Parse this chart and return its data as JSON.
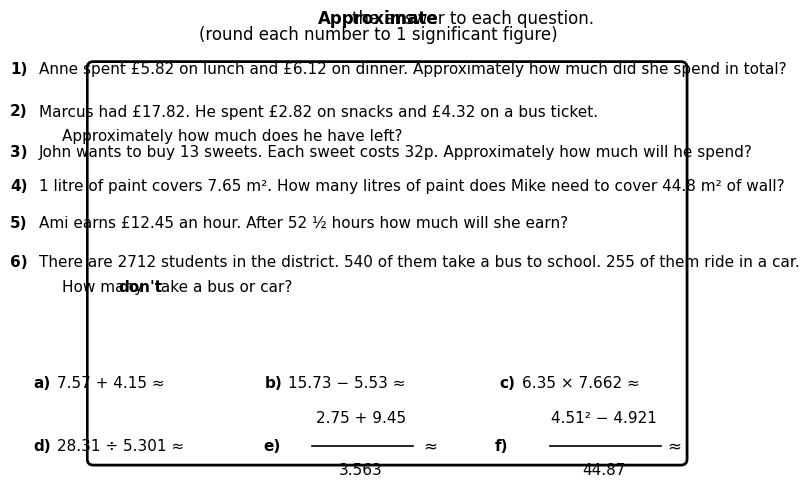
{
  "title_bold": "Approximate",
  "title_rest": " the answer to each question.",
  "subtitle": "(round each number to 1 significant figure)",
  "bg_color": "#ffffff",
  "box_color": "#000000",
  "font_family": "DejaVu Sans",
  "font_size": 11,
  "font_size_title": 12,
  "q1": "Anne spent £5.82 on lunch and £6.12 on dinner. Approximately how much did she spend in total?",
  "q2a": "Marcus had £17.82. He spent £2.82 on snacks and £4.32 on a bus ticket.",
  "q2b": "Approximately how much does he have left?",
  "q3": "John wants to buy 13 sweets. Each sweet costs 32p. Approximately how much will he spend?",
  "q4": "1 litre of paint covers 7.65 m². How many litres of paint does Mike need to cover 44.8 m² of wall?",
  "q5": "Ami earns £12.45 an hour. After 52 ½ hours how much will she earn?",
  "q6a": "There are 2712 students in the district. 540 of them take a bus to school. 255 of them ride in a car.",
  "q6b_pre": "How many ",
  "q6b_bold": "don't",
  "q6b_post": " take a bus or car?",
  "row_a_label": "a)",
  "row_a_expr": "7.57 + 4.15 ≈",
  "row_b_label": "b)",
  "row_b_expr": "15.73 − 5.53 ≈",
  "row_c_label": "c)",
  "row_c_expr": "6.35 × 7.662 ≈",
  "row_d_label": "d)",
  "row_d_expr": "28.31 ÷ 5.301 ≈",
  "row_e_label": "e)",
  "row_e_num": "2.75 + 9.45",
  "row_e_den": "3.563",
  "row_e_approx": "≈",
  "row_f_label": "f)",
  "row_f_num": "4.51² − 4.921",
  "row_f_den": "44.87",
  "row_f_approx": "≈"
}
